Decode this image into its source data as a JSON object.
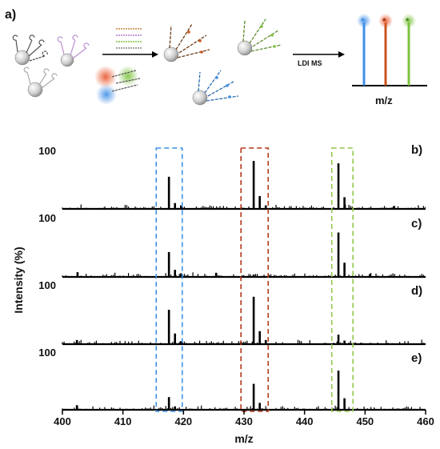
{
  "panel_labels": [
    "a)",
    "b)",
    "c)",
    "d)",
    "e)"
  ],
  "schematic": {
    "arrow_label": "LDI MS",
    "axis_label": "m/z",
    "tag_colors": [
      "#3f8fe6",
      "#c8531c",
      "#7cc23f"
    ]
  },
  "colors": {
    "blue_box": "#3f8fe6",
    "red_box": "#b5361a",
    "green_box": "#8fc94a",
    "trace": "#000000"
  },
  "chart_data": {
    "type": "line",
    "xlabel": "m/z",
    "ylabel": "Intensity (%)",
    "xlim": [
      400,
      460
    ],
    "xticks": [
      "400",
      "410",
      "420",
      "430",
      "440",
      "450",
      "460"
    ],
    "ytick_label": "100",
    "highlight_windows": [
      [
        415.5,
        419.8
      ],
      [
        429.5,
        434.0
      ],
      [
        444.5,
        448.0
      ]
    ],
    "series": [
      {
        "label": "b)",
        "peaks": [
          [
            417.6,
            55
          ],
          [
            418.6,
            10
          ],
          [
            419.6,
            6
          ],
          [
            431.6,
            82
          ],
          [
            432.6,
            22
          ],
          [
            433.6,
            6
          ],
          [
            445.6,
            78
          ],
          [
            446.6,
            20
          ],
          [
            454.8,
            5
          ]
        ]
      },
      {
        "label": "c)",
        "peaks": [
          [
            402.5,
            8
          ],
          [
            417.6,
            42
          ],
          [
            418.6,
            12
          ],
          [
            419.6,
            6
          ],
          [
            425.4,
            7
          ],
          [
            431.6,
            4
          ],
          [
            445.6,
            75
          ],
          [
            446.6,
            24
          ],
          [
            450.8,
            5
          ]
        ]
      },
      {
        "label": "d)",
        "peaks": [
          [
            402.4,
            7
          ],
          [
            417.6,
            58
          ],
          [
            418.6,
            18
          ],
          [
            419.6,
            5
          ],
          [
            431.6,
            80
          ],
          [
            432.6,
            22
          ],
          [
            433.6,
            7
          ],
          [
            445.6,
            16
          ],
          [
            446.6,
            6
          ]
        ]
      },
      {
        "label": "e)",
        "peaks": [
          [
            402.4,
            8
          ],
          [
            417.6,
            22
          ],
          [
            418.6,
            6
          ],
          [
            431.6,
            45
          ],
          [
            432.6,
            12
          ],
          [
            445.6,
            68
          ],
          [
            446.6,
            20
          ]
        ]
      }
    ]
  }
}
